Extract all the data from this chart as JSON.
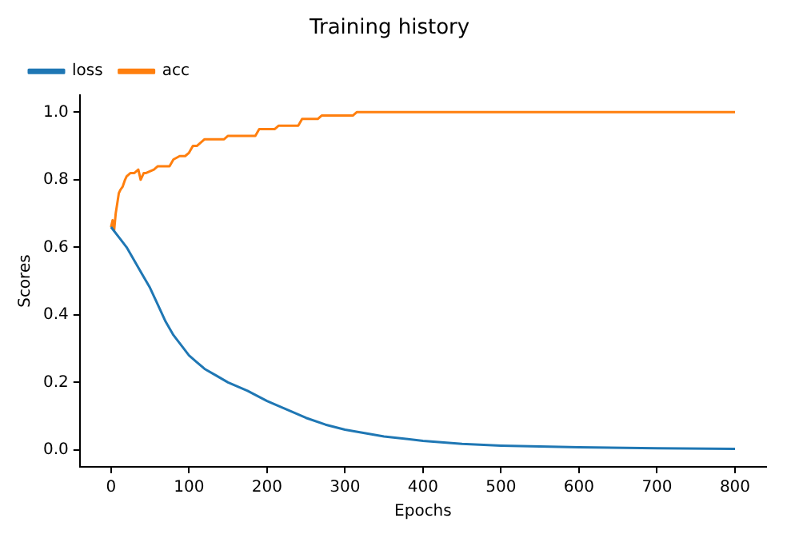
{
  "chart_data": {
    "type": "line",
    "title": "Training history",
    "xlabel": "Epochs",
    "ylabel": "Scores",
    "xlim": [
      -40,
      840
    ],
    "xticks": [
      0,
      100,
      200,
      300,
      400,
      500,
      600,
      700,
      800
    ],
    "ylim": [
      -0.05,
      1.05
    ],
    "yticks": [
      {
        "value": 0,
        "label": "0.0"
      },
      {
        "value": 0.2,
        "label": "0.2"
      },
      {
        "value": 0.4,
        "label": "0.4"
      },
      {
        "value": 0.6,
        "label": "0.6"
      },
      {
        "value": 0.8,
        "label": "0.8"
      },
      {
        "value": 1,
        "label": "1.0"
      }
    ],
    "grid": false,
    "legend": "top left",
    "marker": "none",
    "line_style": "solid",
    "series": [
      {
        "name": "loss",
        "color": "#1f77b4",
        "x": [
          0,
          10,
          20,
          30,
          40,
          50,
          60,
          70,
          80,
          90,
          100,
          110,
          120,
          135,
          150,
          175,
          200,
          225,
          250,
          275,
          300,
          350,
          400,
          450,
          500,
          600,
          700,
          800
        ],
        "values": [
          0.66,
          0.63,
          0.6,
          0.56,
          0.52,
          0.48,
          0.43,
          0.38,
          0.34,
          0.31,
          0.28,
          0.26,
          0.24,
          0.22,
          0.2,
          0.175,
          0.145,
          0.12,
          0.095,
          0.075,
          0.06,
          0.04,
          0.027,
          0.018,
          0.013,
          0.008,
          0.005,
          0.003
        ]
      },
      {
        "name": "acc",
        "color": "#ff7f0e",
        "x": [
          0,
          2,
          4,
          6,
          8,
          10,
          12,
          15,
          18,
          20,
          25,
          30,
          35,
          38,
          42,
          45,
          55,
          60,
          65,
          75,
          80,
          88,
          95,
          100,
          105,
          110,
          115,
          120,
          145,
          150,
          185,
          190,
          210,
          215,
          240,
          245,
          265,
          270,
          310,
          315,
          800
        ],
        "values": [
          0.66,
          0.68,
          0.65,
          0.7,
          0.73,
          0.76,
          0.77,
          0.78,
          0.8,
          0.81,
          0.82,
          0.82,
          0.83,
          0.8,
          0.82,
          0.82,
          0.83,
          0.84,
          0.84,
          0.84,
          0.86,
          0.87,
          0.87,
          0.88,
          0.9,
          0.9,
          0.91,
          0.92,
          0.92,
          0.93,
          0.93,
          0.95,
          0.95,
          0.96,
          0.96,
          0.98,
          0.98,
          0.99,
          0.99,
          1.0,
          1.0
        ]
      }
    ]
  }
}
